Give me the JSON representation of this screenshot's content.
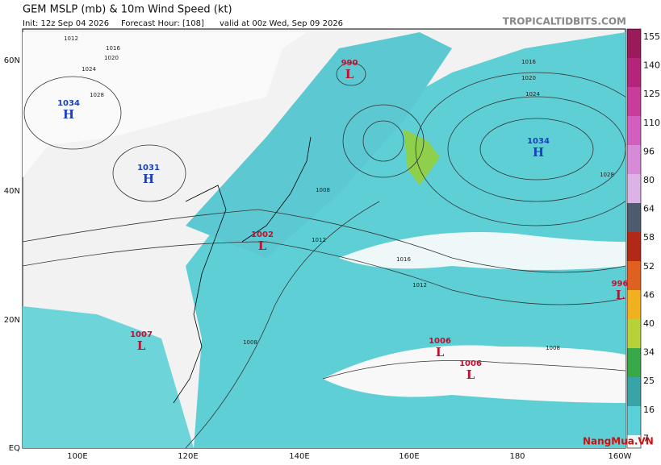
{
  "header": {
    "title": "GEM MSLP (mb) & 10m Wind Speed (kt)",
    "init": "Init: 12z Sep 04 2026",
    "forecast_hour": "Forecast Hour: [108]",
    "valid": "valid at 00z Wed, Sep 09 2026",
    "source": "TROPICALTIDBITS.COM"
  },
  "colorbar": {
    "labels": [
      155,
      140,
      125,
      110,
      96,
      80,
      64,
      58,
      52,
      46,
      40,
      34,
      25,
      16,
      7
    ]
  },
  "lat_labels": [
    "60N",
    "40N",
    "20N",
    "EQ"
  ],
  "lon_labels": [
    "100E",
    "120E",
    "140E",
    "160E",
    "180",
    "160W"
  ],
  "centers": [
    {
      "value": "1034",
      "letter": "H"
    },
    {
      "value": "1031",
      "letter": "H"
    },
    {
      "value": "990",
      "letter": "L"
    },
    {
      "value": "1002",
      "letter": "L"
    },
    {
      "value": "1007",
      "letter": "L"
    },
    {
      "value": "1034",
      "letter": "H"
    },
    {
      "value": "1006",
      "letter": "L"
    },
    {
      "value": "1006",
      "letter": "L"
    },
    {
      "value": "996",
      "letter": "L"
    }
  ],
  "isobar_labels": [
    "1012",
    "1016",
    "1020",
    "1024",
    "1028",
    "1016",
    "1020",
    "1024",
    "1028",
    "1012",
    "1016",
    "1008",
    "1012",
    "1008",
    "1008"
  ],
  "watermark": "NangMua.VN"
}
